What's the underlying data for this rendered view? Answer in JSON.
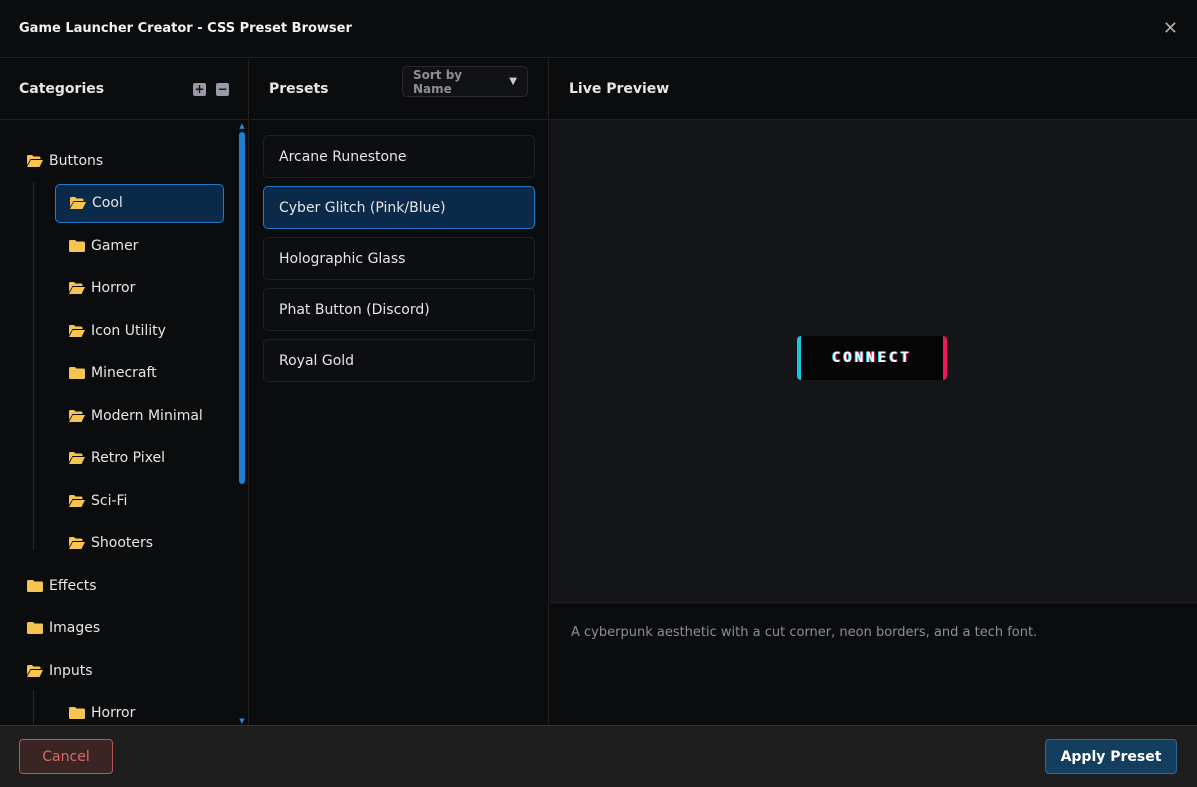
{
  "window": {
    "title": "Game Launcher Creator - CSS Preset Browser",
    "close_icon": "close-icon"
  },
  "categories": {
    "title": "Categories",
    "expand_all": "+",
    "collapse_all": "−",
    "items": [
      {
        "label": "Buttons",
        "level": 0,
        "open": true
      },
      {
        "label": "Cool",
        "level": 1,
        "open": true,
        "selected": true
      },
      {
        "label": "Gamer",
        "level": 1,
        "open": false
      },
      {
        "label": "Horror",
        "level": 1,
        "open": true
      },
      {
        "label": "Icon Utility",
        "level": 1,
        "open": true
      },
      {
        "label": "Minecraft",
        "level": 1,
        "open": false
      },
      {
        "label": "Modern Minimal",
        "level": 1,
        "open": true
      },
      {
        "label": "Retro Pixel",
        "level": 1,
        "open": true
      },
      {
        "label": "Sci-Fi",
        "level": 1,
        "open": true
      },
      {
        "label": "Shooters",
        "level": 1,
        "open": true
      },
      {
        "label": "Effects",
        "level": 0,
        "open": false
      },
      {
        "label": "Images",
        "level": 0,
        "open": false
      },
      {
        "label": "Inputs",
        "level": 0,
        "open": true
      },
      {
        "label": "Horror",
        "level": 1,
        "open": false
      }
    ]
  },
  "presets": {
    "title": "Presets",
    "sort_value": "Sort by Name",
    "items": [
      "Arcane Runestone",
      "Cyber Glitch (Pink/Blue)",
      "Holographic Glass",
      "Phat Button (Discord)",
      "Royal Gold"
    ],
    "selected_index": 1
  },
  "preview": {
    "title": "Live Preview",
    "button_text": "CONNECT",
    "description": "A cyberpunk aesthetic with a cut corner, neon borders, and a tech font.",
    "colors": {
      "left_border": "#19c8e0",
      "right_border": "#f0185a"
    }
  },
  "footer": {
    "cancel": "Cancel",
    "apply": "Apply Preset"
  },
  "colors": {
    "accent": "#2b78c2",
    "folder": "#f5c451",
    "danger": "#d96a6a"
  }
}
